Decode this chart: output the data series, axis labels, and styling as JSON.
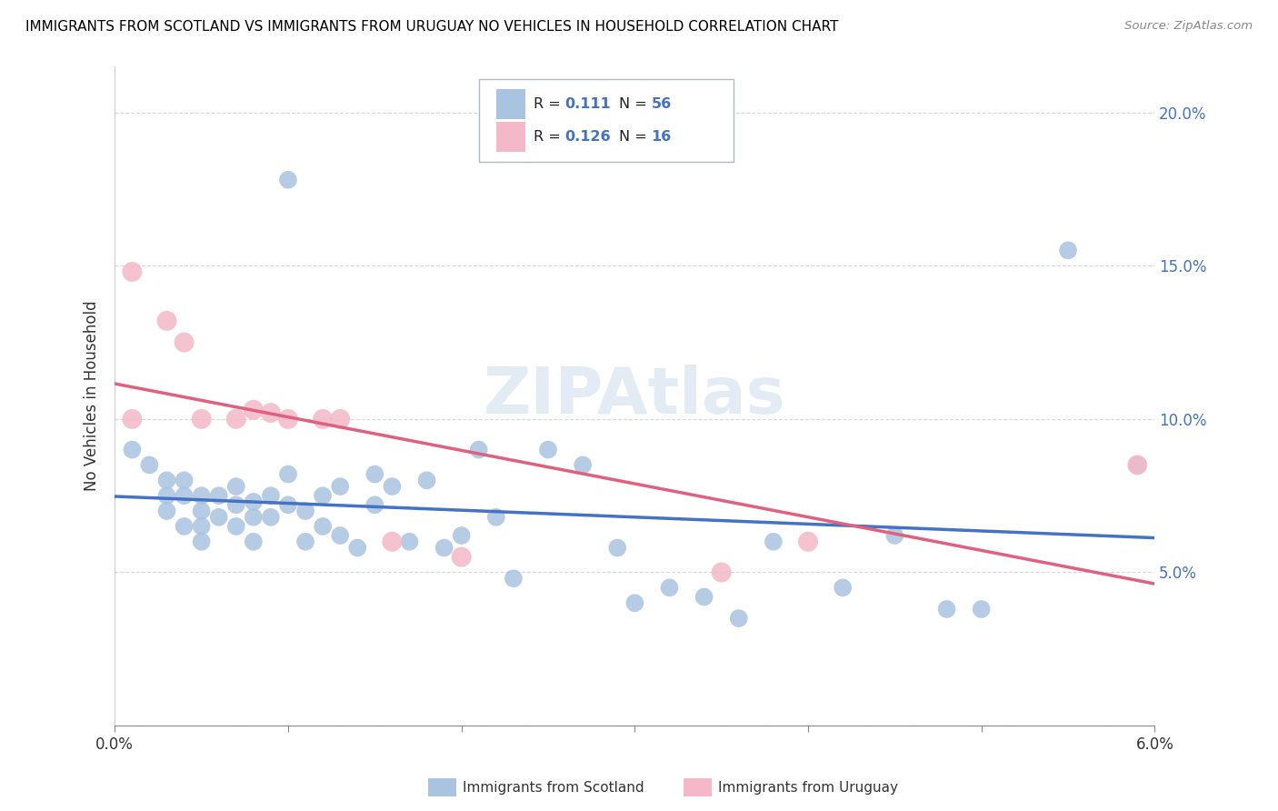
{
  "title": "IMMIGRANTS FROM SCOTLAND VS IMMIGRANTS FROM URUGUAY NO VEHICLES IN HOUSEHOLD CORRELATION CHART",
  "source": "Source: ZipAtlas.com",
  "ylabel": "No Vehicles in Household",
  "x_min": 0.0,
  "x_max": 0.06,
  "y_min": 0.0,
  "y_max": 0.215,
  "x_ticks": [
    0.0,
    0.01,
    0.02,
    0.03,
    0.04,
    0.05,
    0.06
  ],
  "y_ticks": [
    0.0,
    0.05,
    0.1,
    0.15,
    0.2
  ],
  "y_tick_labels": [
    "",
    "5.0%",
    "10.0%",
    "15.0%",
    "20.0%"
  ],
  "scotland_color": "#a8c4e0",
  "uruguay_color": "#f4b8c8",
  "scotland_line_color": "#4472c4",
  "uruguay_line_color": "#e06080",
  "scotland_label": "Immigrants from Scotland",
  "uruguay_label": "Immigrants from Uruguay",
  "r_scotland": 0.111,
  "n_scotland": 56,
  "r_uruguay": 0.126,
  "n_uruguay": 16,
  "watermark": "ZIPAtlas",
  "scotland_x": [
    0.001,
    0.002,
    0.003,
    0.003,
    0.003,
    0.004,
    0.004,
    0.004,
    0.005,
    0.005,
    0.005,
    0.005,
    0.006,
    0.006,
    0.007,
    0.007,
    0.007,
    0.008,
    0.008,
    0.008,
    0.009,
    0.009,
    0.01,
    0.01,
    0.01,
    0.011,
    0.011,
    0.012,
    0.012,
    0.013,
    0.013,
    0.014,
    0.015,
    0.015,
    0.016,
    0.017,
    0.018,
    0.019,
    0.02,
    0.021,
    0.022,
    0.023,
    0.025,
    0.027,
    0.029,
    0.03,
    0.032,
    0.034,
    0.036,
    0.038,
    0.042,
    0.045,
    0.048,
    0.05,
    0.055,
    0.059
  ],
  "scotland_y": [
    0.09,
    0.085,
    0.08,
    0.075,
    0.07,
    0.08,
    0.075,
    0.065,
    0.075,
    0.07,
    0.065,
    0.06,
    0.075,
    0.068,
    0.078,
    0.072,
    0.065,
    0.073,
    0.068,
    0.06,
    0.075,
    0.068,
    0.178,
    0.082,
    0.072,
    0.07,
    0.06,
    0.075,
    0.065,
    0.078,
    0.062,
    0.058,
    0.082,
    0.072,
    0.078,
    0.06,
    0.08,
    0.058,
    0.062,
    0.09,
    0.068,
    0.048,
    0.09,
    0.085,
    0.058,
    0.04,
    0.045,
    0.042,
    0.035,
    0.06,
    0.045,
    0.062,
    0.038,
    0.038,
    0.155,
    0.085
  ],
  "uruguay_x": [
    0.001,
    0.001,
    0.003,
    0.004,
    0.005,
    0.007,
    0.008,
    0.009,
    0.01,
    0.012,
    0.013,
    0.016,
    0.02,
    0.035,
    0.04,
    0.059
  ],
  "uruguay_y": [
    0.148,
    0.1,
    0.132,
    0.125,
    0.1,
    0.1,
    0.103,
    0.102,
    0.1,
    0.1,
    0.1,
    0.06,
    0.055,
    0.05,
    0.06,
    0.085
  ]
}
